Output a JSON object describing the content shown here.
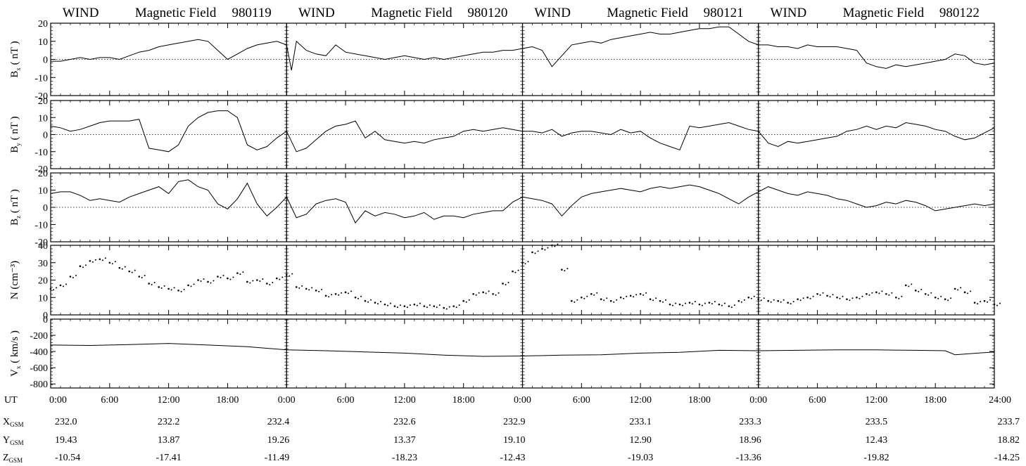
{
  "figure_titles": [
    {
      "instrument": "WIND",
      "quantity": "Magnetic Field",
      "date": "980119"
    },
    {
      "instrument": "WIND",
      "quantity": "Magnetic Field",
      "date": "980120"
    },
    {
      "instrument": "WIND",
      "quantity": "Magnetic Field",
      "date": "980121"
    },
    {
      "instrument": "WIND",
      "quantity": "Magnetic Field",
      "date": "980122"
    }
  ],
  "chart_data": {
    "type": "line",
    "x_unit_hours_per_day": 24,
    "x_tick_labels": [
      "0:00",
      "6:00",
      "12:00",
      "18:00",
      "0:00",
      "6:00",
      "12:00",
      "18:00",
      "0:00",
      "6:00",
      "12:00",
      "18:00",
      "0:00",
      "6:00",
      "12:00",
      "18:00",
      "24:00"
    ],
    "x_tick_hours": [
      0,
      6,
      12,
      18,
      24,
      30,
      36,
      42,
      48,
      54,
      60,
      66,
      72,
      78,
      84,
      90,
      96
    ],
    "x_axis_label": "UT",
    "day_boundaries_hours": [
      24,
      48,
      72
    ],
    "panels": [
      {
        "id": "bx",
        "ylabel_main": "B",
        "ylabel_sub": "x",
        "ylabel_unit": "( nT )",
        "ylim": [
          -20,
          20
        ],
        "yticks": [
          {
            "v": 20,
            "l": "20"
          },
          {
            "v": 10,
            "l": "10"
          },
          {
            "v": 0,
            "l": "0"
          },
          {
            "v": -10,
            "l": "-10"
          },
          {
            "v": -20,
            "l": "-20"
          }
        ],
        "zero_line": true,
        "style": "line",
        "series": {
          "name": "Bx",
          "x": [
            0,
            1,
            2,
            3,
            4,
            5,
            6,
            7,
            8,
            9,
            10,
            11,
            12,
            13,
            14,
            15,
            16,
            17,
            18,
            19,
            20,
            21,
            22,
            23,
            24,
            24.5,
            25,
            26,
            27,
            28,
            29,
            30,
            31,
            32,
            33,
            34,
            35,
            36,
            37,
            38,
            39,
            40,
            41,
            42,
            43,
            44,
            45,
            46,
            47,
            48,
            49,
            50,
            51,
            52,
            53,
            54,
            55,
            56,
            57,
            58,
            59,
            60,
            61,
            62,
            63,
            64,
            65,
            66,
            67,
            68,
            69,
            70,
            71,
            72,
            73,
            74,
            75,
            76,
            77,
            78,
            79,
            80,
            81,
            82,
            83,
            84,
            85,
            86,
            87,
            88,
            89,
            90,
            91,
            92,
            93,
            94,
            95,
            96
          ],
          "y": [
            -1,
            -1,
            0,
            1,
            0,
            1,
            1,
            0,
            2,
            4,
            5,
            7,
            8,
            9,
            10,
            11,
            10,
            5,
            0,
            3,
            6,
            8,
            9,
            10,
            8,
            -6,
            10,
            5,
            3,
            2,
            8,
            4,
            3,
            2,
            1,
            0,
            1,
            2,
            1,
            0,
            1,
            0,
            1,
            2,
            3,
            4,
            4,
            5,
            5,
            6,
            7,
            5,
            -4,
            2,
            8,
            9,
            10,
            9,
            11,
            12,
            13,
            14,
            15,
            14,
            14,
            15,
            16,
            17,
            17,
            18,
            18,
            14,
            10,
            8,
            8,
            7,
            7,
            6,
            8,
            7,
            7,
            7,
            6,
            5,
            -2,
            -4,
            -5,
            -3,
            -4,
            -3,
            -2,
            -1,
            0,
            3,
            2,
            -2,
            -3,
            -2
          ]
        }
      },
      {
        "id": "by",
        "ylabel_main": "B",
        "ylabel_sub": "y",
        "ylabel_unit": "( nT )",
        "ylim": [
          -20,
          20
        ],
        "yticks": [
          {
            "v": 20,
            "l": "20"
          },
          {
            "v": 10,
            "l": "10"
          },
          {
            "v": 0,
            "l": "0"
          },
          {
            "v": -10,
            "l": "-10"
          },
          {
            "v": -20,
            "l": "-20"
          }
        ],
        "zero_line": true,
        "style": "line",
        "series": {
          "name": "By",
          "x": [
            0,
            1,
            2,
            3,
            4,
            5,
            6,
            7,
            8,
            9,
            10,
            11,
            12,
            13,
            14,
            15,
            16,
            17,
            18,
            19,
            20,
            21,
            22,
            23,
            24,
            25,
            26,
            27,
            28,
            29,
            30,
            31,
            32,
            33,
            34,
            35,
            36,
            37,
            38,
            39,
            40,
            41,
            42,
            43,
            44,
            45,
            46,
            47,
            48,
            49,
            50,
            51,
            52,
            53,
            54,
            55,
            56,
            57,
            58,
            59,
            60,
            61,
            62,
            63,
            64,
            65,
            66,
            67,
            68,
            69,
            70,
            71,
            72,
            73,
            74,
            75,
            76,
            77,
            78,
            79,
            80,
            81,
            82,
            83,
            84,
            85,
            86,
            87,
            88,
            89,
            90,
            91,
            92,
            93,
            94,
            95,
            96
          ],
          "y": [
            5,
            4,
            2,
            3,
            5,
            7,
            8,
            8,
            8,
            9,
            -8,
            -9,
            -10,
            -6,
            5,
            10,
            13,
            14,
            14,
            10,
            -6,
            -9,
            -7,
            -2,
            2,
            -10,
            -8,
            -3,
            2,
            5,
            6,
            8,
            -2,
            2,
            -3,
            -4,
            -5,
            -4,
            -5,
            -3,
            -2,
            -1,
            2,
            3,
            2,
            3,
            4,
            3,
            2,
            2,
            1,
            3,
            -1,
            1,
            2,
            2,
            1,
            0,
            3,
            1,
            2,
            -2,
            -5,
            -7,
            -9,
            5,
            4,
            5,
            6,
            7,
            5,
            3,
            2,
            -5,
            -7,
            -4,
            -5,
            -4,
            -3,
            -2,
            -1,
            2,
            3,
            5,
            3,
            5,
            4,
            7,
            6,
            5,
            3,
            2,
            -1,
            -3,
            -2,
            1,
            4
          ]
        }
      },
      {
        "id": "bz",
        "ylabel_main": "B",
        "ylabel_sub": "z",
        "ylabel_unit": "( nT )",
        "ylim": [
          -20,
          20
        ],
        "yticks": [
          {
            "v": 20,
            "l": "20"
          },
          {
            "v": 10,
            "l": "10"
          },
          {
            "v": 0,
            "l": "0"
          },
          {
            "v": -10,
            "l": "-10"
          },
          {
            "v": -20,
            "l": "-20"
          }
        ],
        "zero_line": true,
        "style": "line",
        "series": {
          "name": "Bz",
          "x": [
            0,
            1,
            2,
            3,
            4,
            5,
            6,
            7,
            8,
            9,
            10,
            11,
            12,
            13,
            14,
            15,
            16,
            17,
            18,
            19,
            20,
            21,
            22,
            23,
            24,
            25,
            26,
            27,
            28,
            29,
            30,
            31,
            32,
            33,
            34,
            35,
            36,
            37,
            38,
            39,
            40,
            41,
            42,
            43,
            44,
            45,
            46,
            47,
            48,
            49,
            50,
            51,
            52,
            53,
            54,
            55,
            56,
            57,
            58,
            59,
            60,
            61,
            62,
            63,
            64,
            65,
            66,
            67,
            68,
            69,
            70,
            71,
            72,
            73,
            74,
            75,
            76,
            77,
            78,
            79,
            80,
            81,
            82,
            83,
            84,
            85,
            86,
            87,
            88,
            89,
            90,
            91,
            92,
            93,
            94,
            95,
            96
          ],
          "y": [
            8,
            9,
            9,
            7,
            4,
            5,
            4,
            3,
            6,
            8,
            10,
            12,
            8,
            15,
            16,
            12,
            10,
            2,
            -1,
            5,
            14,
            2,
            -5,
            0,
            6,
            -6,
            -4,
            2,
            4,
            5,
            3,
            -9,
            -2,
            -5,
            -3,
            -4,
            -6,
            -5,
            -3,
            -7,
            -5,
            -5,
            -6,
            -4,
            -3,
            -2,
            -2,
            3,
            6,
            5,
            4,
            2,
            -5,
            1,
            6,
            8,
            9,
            10,
            11,
            10,
            9,
            11,
            12,
            11,
            12,
            13,
            12,
            10,
            8,
            5,
            2,
            6,
            9,
            12,
            10,
            8,
            7,
            9,
            8,
            7,
            5,
            4,
            2,
            0,
            1,
            3,
            2,
            4,
            3,
            1,
            -2,
            -1,
            0,
            1,
            2,
            1,
            2
          ]
        }
      },
      {
        "id": "n",
        "ylabel_main": "N",
        "ylabel_sub": "",
        "ylabel_unit": "(cm⁻³)",
        "ylim": [
          0,
          40
        ],
        "yticks": [
          {
            "v": 40,
            "l": "40"
          },
          {
            "v": 30,
            "l": "30"
          },
          {
            "v": 20,
            "l": "20"
          },
          {
            "v": 10,
            "l": "10"
          },
          {
            "v": 0,
            "l": "0"
          }
        ],
        "zero_line": false,
        "style": "dots",
        "series": {
          "name": "N",
          "x": [
            0,
            1,
            2,
            3,
            4,
            5,
            6,
            7,
            8,
            9,
            10,
            11,
            12,
            13,
            14,
            15,
            16,
            17,
            18,
            19,
            20,
            21,
            22,
            23,
            24,
            25,
            26,
            27,
            28,
            29,
            30,
            31,
            32,
            33,
            34,
            35,
            36,
            37,
            38,
            39,
            40,
            41,
            42,
            43,
            44,
            45,
            46,
            47,
            48,
            49,
            50,
            51,
            52,
            53,
            54,
            55,
            56,
            57,
            58,
            59,
            60,
            61,
            62,
            63,
            64,
            65,
            66,
            67,
            68,
            69,
            70,
            71,
            72,
            73,
            74,
            75,
            76,
            77,
            78,
            79,
            80,
            81,
            82,
            83,
            84,
            85,
            86,
            87,
            88,
            89,
            90,
            91,
            92,
            93,
            94,
            95,
            96
          ],
          "y": [
            15,
            17,
            22,
            28,
            31,
            32,
            30,
            27,
            25,
            22,
            18,
            16,
            15,
            14,
            17,
            20,
            19,
            22,
            21,
            24,
            19,
            20,
            18,
            21,
            23,
            16,
            15,
            14,
            11,
            12,
            13,
            10,
            8,
            7,
            6,
            5,
            5,
            6,
            5,
            5,
            4,
            5,
            8,
            12,
            13,
            12,
            18,
            25,
            30,
            36,
            38,
            40,
            26,
            8,
            10,
            12,
            9,
            8,
            10,
            11,
            12,
            9,
            8,
            6,
            6,
            7,
            6,
            7,
            6,
            5,
            8,
            10,
            9,
            8,
            8,
            7,
            9,
            10,
            12,
            11,
            10,
            9,
            10,
            12,
            13,
            12,
            10,
            17,
            14,
            12,
            10,
            9,
            15,
            13,
            7,
            8,
            6
          ]
        }
      },
      {
        "id": "vx",
        "ylabel_main": "V",
        "ylabel_sub": "x",
        "ylabel_unit": "( km/s )",
        "ylim": [
          -850,
          0
        ],
        "yticks": [
          {
            "v": 0,
            "l": "0"
          },
          {
            "v": -200,
            "l": "-200"
          },
          {
            "v": -400,
            "l": "-400"
          },
          {
            "v": -600,
            "l": "-600"
          },
          {
            "v": -800,
            "l": "-800"
          }
        ],
        "zero_line": false,
        "style": "line",
        "series": {
          "name": "Vx",
          "x": [
            0,
            4,
            8,
            12,
            16,
            20,
            24,
            28,
            32,
            36,
            40,
            44,
            48,
            52,
            56,
            60,
            64,
            68,
            72,
            76,
            80,
            84,
            88,
            91,
            92,
            96
          ],
          "y": [
            -320,
            -325,
            -315,
            -300,
            -320,
            -340,
            -380,
            -390,
            -405,
            -420,
            -445,
            -460,
            -455,
            -445,
            -440,
            -420,
            -410,
            -385,
            -390,
            -385,
            -380,
            -380,
            -385,
            -390,
            -440,
            -405
          ]
        }
      }
    ]
  },
  "position_rows": [
    {
      "label_main": "X",
      "label_sub": "GSM",
      "values": [
        "232.0",
        "232.2",
        "232.4",
        "232.6",
        "232.9",
        "233.1",
        "233.3",
        "233.5",
        "233.7"
      ]
    },
    {
      "label_main": "Y",
      "label_sub": "GSM",
      "values": [
        "19.43",
        "13.87",
        "19.26",
        "13.37",
        "19.10",
        "12.90",
        "18.96",
        "12.43",
        "18.82"
      ]
    },
    {
      "label_main": "Z",
      "label_sub": "GSM",
      "values": [
        "-10.54",
        "-17.41",
        "-11.49",
        "-18.23",
        "-12.43",
        "-19.03",
        "-13.36",
        "-19.82",
        "-14.25"
      ]
    }
  ]
}
